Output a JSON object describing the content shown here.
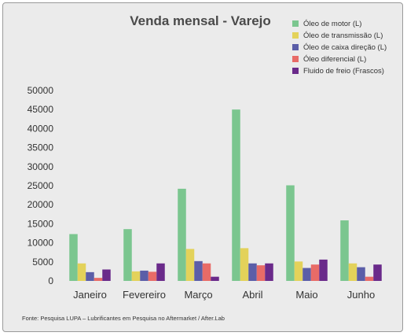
{
  "chart_data": {
    "type": "bar",
    "title": "Venda mensal - Varejo",
    "categories": [
      "Janeiro",
      "Fevereiro",
      "Março",
      "Abril",
      "Maio",
      "Junho"
    ],
    "ylim": [
      0,
      50000
    ],
    "yticks": [
      0,
      5000,
      10000,
      15000,
      20000,
      25000,
      30000,
      35000,
      40000,
      45000,
      50000
    ],
    "grid": false,
    "legend_position": "top-right",
    "series": [
      {
        "name": "Óleo de motor (L)",
        "color": "#7bc68f",
        "values": [
          12300,
          13600,
          24200,
          45000,
          25100,
          15900
        ]
      },
      {
        "name": "Óleo de transmissão (L)",
        "color": "#e3d25a",
        "values": [
          4600,
          2500,
          8400,
          8600,
          5100,
          4600
        ]
      },
      {
        "name": "Óleo de caixa direção (L)",
        "color": "#5b5ea8",
        "values": [
          2300,
          2700,
          5200,
          4600,
          3400,
          3600
        ]
      },
      {
        "name": "Óleo diferencial (L)",
        "color": "#e86b67",
        "values": [
          800,
          2400,
          4600,
          4100,
          4300,
          1100
        ]
      },
      {
        "name": "Fluido de freio (Frascos)",
        "color": "#6a2a8a",
        "values": [
          3000,
          4600,
          1100,
          4600,
          5600,
          4300
        ]
      }
    ],
    "source": "Fonte: Pesquisa LUPA – Lubrificantes em Pesquisa no Aftermarket / After.Lab"
  }
}
